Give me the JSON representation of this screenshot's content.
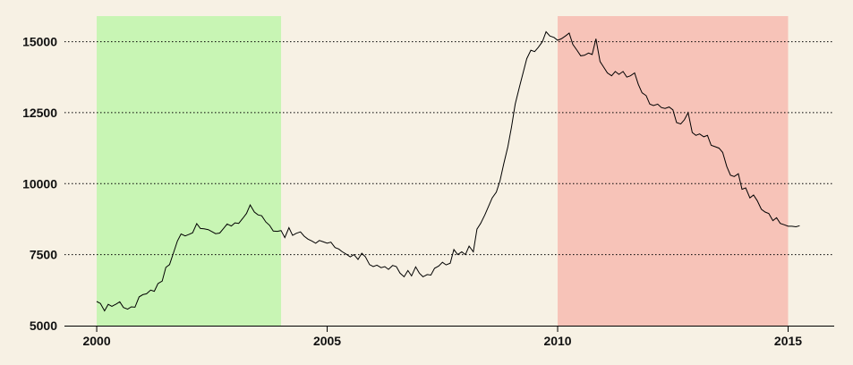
{
  "chart_data": {
    "type": "line",
    "title": "",
    "xlabel": "",
    "ylabel": "",
    "xlim": [
      1999.3,
      2016.0
    ],
    "ylim": [
      5000,
      15900
    ],
    "x_ticks": [
      2000,
      2005,
      2010,
      2015
    ],
    "x_tick_labels": [
      "2000",
      "2005",
      "2010",
      "2015"
    ],
    "y_ticks": [
      5000,
      7500,
      10000,
      12500,
      15000
    ],
    "y_tick_labels": [
      "5000",
      "7500",
      "10000",
      "12500",
      "15000"
    ],
    "grid": "horizontal dotted",
    "background_color": "#f7f1e4",
    "shaded_regions": [
      {
        "x_start": 2000.0,
        "x_end": 2004.0,
        "color": "#c8f5b4"
      },
      {
        "x_start": 2010.0,
        "x_end": 2015.0,
        "color": "#f7c3b8"
      }
    ],
    "series": [
      {
        "color": "#000000",
        "x": [
          2000.0,
          2000.08,
          2000.17,
          2000.25,
          2000.33,
          2000.42,
          2000.5,
          2000.58,
          2000.67,
          2000.75,
          2000.83,
          2000.92,
          2001.0,
          2001.08,
          2001.17,
          2001.25,
          2001.33,
          2001.42,
          2001.5,
          2001.58,
          2001.67,
          2001.75,
          2001.83,
          2001.92,
          2002.0,
          2002.08,
          2002.17,
          2002.25,
          2002.33,
          2002.42,
          2002.5,
          2002.58,
          2002.67,
          2002.75,
          2002.83,
          2002.92,
          2003.0,
          2003.08,
          2003.17,
          2003.25,
          2003.33,
          2003.42,
          2003.5,
          2003.58,
          2003.67,
          2003.75,
          2003.83,
          2003.92,
          2004.0,
          2004.08,
          2004.17,
          2004.25,
          2004.33,
          2004.42,
          2004.5,
          2004.58,
          2004.67,
          2004.75,
          2004.83,
          2004.92,
          2005.0,
          2005.08,
          2005.17,
          2005.25,
          2005.33,
          2005.42,
          2005.5,
          2005.58,
          2005.67,
          2005.75,
          2005.83,
          2005.92,
          2006.0,
          2006.08,
          2006.17,
          2006.25,
          2006.33,
          2006.42,
          2006.5,
          2006.58,
          2006.67,
          2006.75,
          2006.83,
          2006.92,
          2007.0,
          2007.08,
          2007.17,
          2007.25,
          2007.33,
          2007.42,
          2007.5,
          2007.58,
          2007.67,
          2007.75,
          2007.83,
          2007.92,
          2008.0,
          2008.08,
          2008.17,
          2008.25,
          2008.33,
          2008.42,
          2008.5,
          2008.58,
          2008.67,
          2008.75,
          2008.83,
          2008.92,
          2009.0,
          2009.08,
          2009.17,
          2009.25,
          2009.33,
          2009.42,
          2009.5,
          2009.58,
          2009.67,
          2009.75,
          2009.83,
          2009.92,
          2010.0,
          2010.08,
          2010.17,
          2010.25,
          2010.33,
          2010.42,
          2010.5,
          2010.58,
          2010.67,
          2010.75,
          2010.83,
          2010.92,
          2011.0,
          2011.08,
          2011.17,
          2011.25,
          2011.33,
          2011.42,
          2011.5,
          2011.58,
          2011.67,
          2011.75,
          2011.83,
          2011.92,
          2012.0,
          2012.08,
          2012.17,
          2012.25,
          2012.33,
          2012.42,
          2012.5,
          2012.58,
          2012.67,
          2012.75,
          2012.83,
          2012.92,
          2013.0,
          2013.08,
          2013.17,
          2013.25,
          2013.33,
          2013.42,
          2013.5,
          2013.58,
          2013.67,
          2013.75,
          2013.83,
          2013.92,
          2014.0,
          2014.08,
          2014.17,
          2014.25,
          2014.33,
          2014.42,
          2014.5,
          2014.58,
          2014.67,
          2014.75,
          2014.83,
          2014.92,
          2015.0,
          2015.08,
          2015.17,
          2015.25
        ],
        "y": [
          5850,
          5780,
          5520,
          5750,
          5680,
          5760,
          5840,
          5640,
          5580,
          5660,
          5650,
          6010,
          6090,
          6120,
          6250,
          6210,
          6480,
          6570,
          7050,
          7150,
          7580,
          7980,
          8230,
          8160,
          8210,
          8270,
          8590,
          8420,
          8410,
          8380,
          8310,
          8240,
          8260,
          8420,
          8580,
          8510,
          8620,
          8600,
          8780,
          8950,
          9250,
          9000,
          8900,
          8870,
          8650,
          8530,
          8330,
          8320,
          8350,
          8100,
          8450,
          8180,
          8250,
          8300,
          8150,
          8050,
          7980,
          7900,
          8000,
          7950,
          7900,
          7940,
          7750,
          7700,
          7600,
          7510,
          7420,
          7500,
          7330,
          7550,
          7420,
          7150,
          7080,
          7130,
          7040,
          7080,
          6980,
          7120,
          7080,
          6850,
          6720,
          6940,
          6750,
          7070,
          6850,
          6720,
          6800,
          6780,
          7020,
          7100,
          7230,
          7140,
          7200,
          7680,
          7500,
          7600,
          7500,
          7800,
          7600,
          8400,
          8600,
          8900,
          9200,
          9500,
          9700,
          10100,
          10700,
          11300,
          12000,
          12800,
          13400,
          13900,
          14400,
          14700,
          14650,
          14800,
          15000,
          15350,
          15200,
          15150,
          15050,
          15100,
          15200,
          15300,
          14900,
          14700,
          14500,
          14520,
          14600,
          14550,
          15100,
          14300,
          14100,
          13900,
          13800,
          13950,
          13850,
          13950,
          13750,
          13800,
          13900,
          13500,
          13200,
          13100,
          12800,
          12750,
          12800,
          12680,
          12650,
          12700,
          12600,
          12150,
          12100,
          12250,
          12500,
          11800,
          11700,
          11750,
          11650,
          11700,
          11350,
          11300,
          11250,
          11100,
          10600,
          10300,
          10250,
          10350,
          9800,
          9850,
          9500,
          9600,
          9400,
          9100,
          9000,
          8950,
          8700,
          8800,
          8600,
          8550,
          8500,
          8500,
          8480,
          8520
        ]
      }
    ]
  }
}
